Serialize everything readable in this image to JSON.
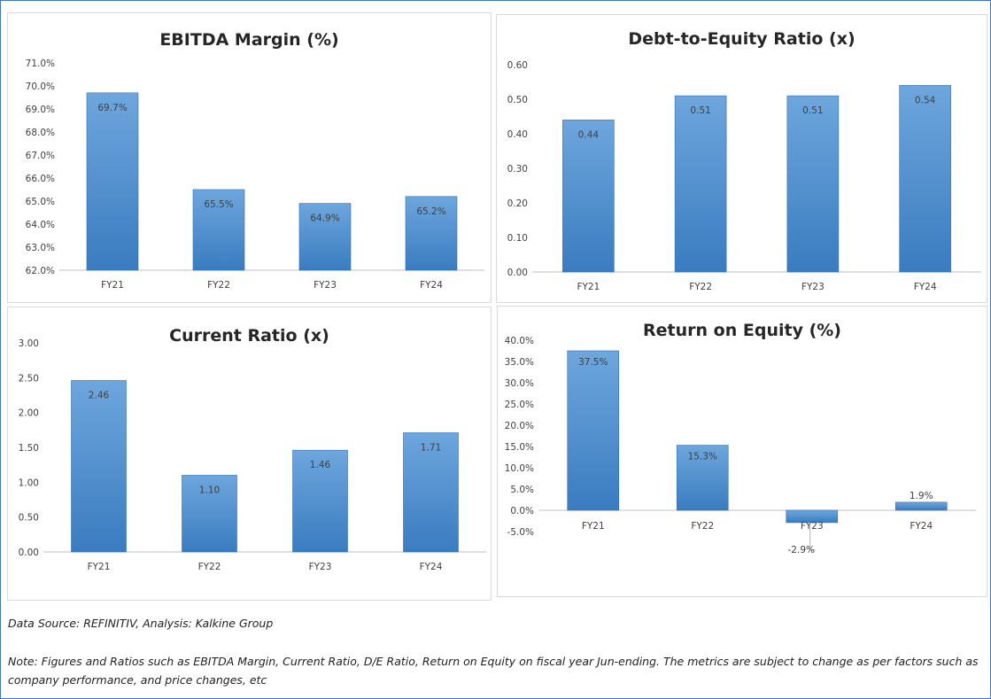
{
  "footer": {
    "source": "Data Source: REFINITIV, Analysis: Kalkine Group",
    "note": "Note: Figures and Ratios such as EBITDA Margin, Current Ratio, D/E Ratio, Return on Equity on fiscal year Jun-ending. The metrics are subject to change as per factors such as company performance, and price changes, etc"
  },
  "colors": {
    "bar_top": "#6ea6dd",
    "bar_bottom": "#3a7cc0",
    "axis": "#bfbfbf",
    "frame": "#4472c4"
  },
  "chart_data": [
    {
      "id": "ebitda",
      "type": "bar",
      "title": "EBITDA Margin (%)",
      "categories": [
        "FY21",
        "FY22",
        "FY23",
        "FY24"
      ],
      "values": [
        69.7,
        65.5,
        64.9,
        65.2
      ],
      "value_labels": [
        "69.7%",
        "65.5%",
        "64.9%",
        "65.2%"
      ],
      "ylim": [
        62.0,
        71.0
      ],
      "yticks": [
        62.0,
        63.0,
        64.0,
        65.0,
        66.0,
        67.0,
        68.0,
        69.0,
        70.0,
        71.0
      ],
      "ytick_labels": [
        "62.0%",
        "63.0%",
        "64.0%",
        "65.0%",
        "66.0%",
        "67.0%",
        "68.0%",
        "69.0%",
        "70.0%",
        "71.0%"
      ],
      "grid": false,
      "legend": "none"
    },
    {
      "id": "de",
      "type": "bar",
      "title": "Debt-to-Equity Ratio (x)",
      "categories": [
        "FY21",
        "FY22",
        "FY23",
        "FY24"
      ],
      "values": [
        0.44,
        0.51,
        0.51,
        0.54
      ],
      "value_labels": [
        "0.44",
        "0.51",
        "0.51",
        "0.54"
      ],
      "ylim": [
        0.0,
        0.6
      ],
      "yticks": [
        0.0,
        0.1,
        0.2,
        0.3,
        0.4,
        0.5,
        0.6
      ],
      "ytick_labels": [
        "0.00",
        "0.10",
        "0.20",
        "0.30",
        "0.40",
        "0.50",
        "0.60"
      ],
      "grid": false,
      "legend": "none"
    },
    {
      "id": "cr",
      "type": "bar",
      "title": "Current Ratio (x)",
      "categories": [
        "FY21",
        "FY22",
        "FY23",
        "FY24"
      ],
      "values": [
        2.46,
        1.1,
        1.46,
        1.71
      ],
      "value_labels": [
        "2.46",
        "1.10",
        "1.46",
        "1.71"
      ],
      "ylim": [
        0.0,
        3.0
      ],
      "yticks": [
        0.0,
        0.5,
        1.0,
        1.5,
        2.0,
        2.5,
        3.0
      ],
      "ytick_labels": [
        "0.00",
        "0.50",
        "1.00",
        "1.50",
        "2.00",
        "2.50",
        "3.00"
      ],
      "grid": false,
      "legend": "none"
    },
    {
      "id": "roe",
      "type": "bar",
      "title": "Return on Equity (%)",
      "categories": [
        "FY21",
        "FY22",
        "FY23",
        "FY24"
      ],
      "values": [
        37.5,
        15.3,
        -2.9,
        1.9
      ],
      "value_labels": [
        "37.5%",
        "15.3%",
        "-2.9%",
        "1.9%"
      ],
      "ylim": [
        -5.0,
        40.0
      ],
      "yticks": [
        -5.0,
        0.0,
        5.0,
        10.0,
        15.0,
        20.0,
        25.0,
        30.0,
        35.0,
        40.0
      ],
      "ytick_labels": [
        "-5.0%",
        "0.0%",
        "5.0%",
        "10.0%",
        "15.0%",
        "20.0%",
        "25.0%",
        "30.0%",
        "35.0%",
        "40.0%"
      ],
      "grid": false,
      "legend": "none"
    }
  ]
}
